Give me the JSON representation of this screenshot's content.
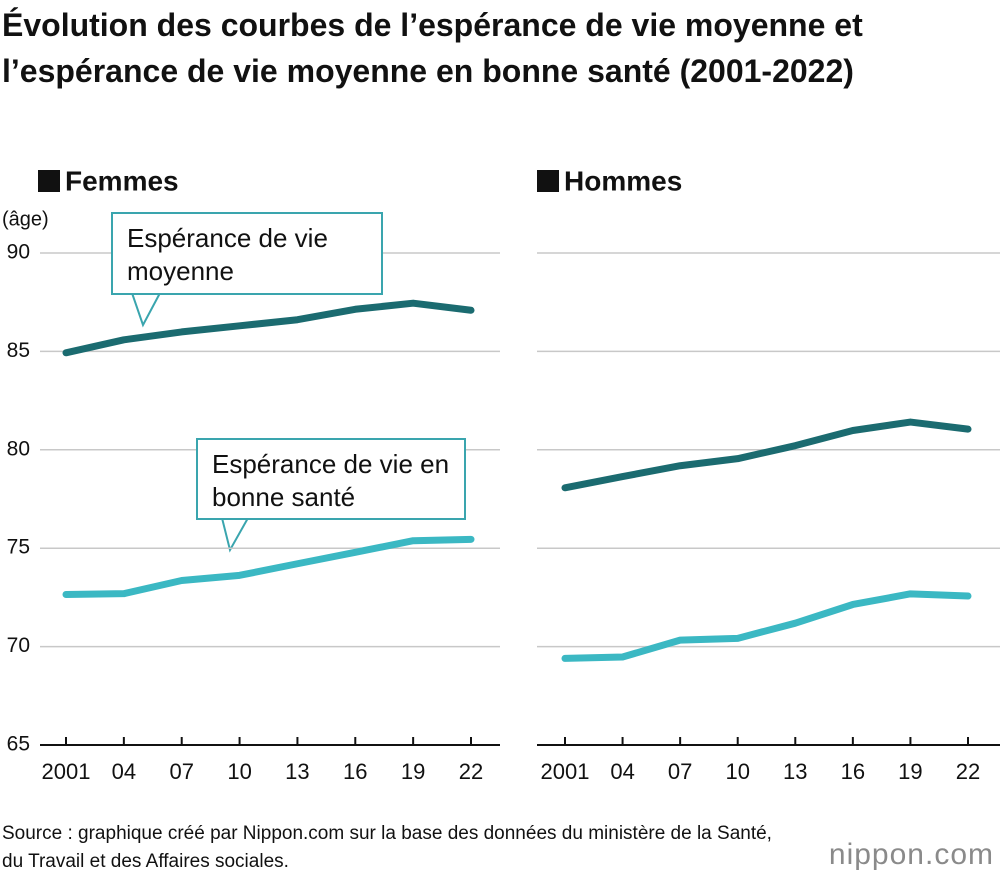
{
  "title": "Évolution des courbes de l’espérance de vie moyenne et l’espérance de vie moyenne en bonne santé (2001-2022)",
  "source": "Source : graphique créé par Nippon.com sur la base des données du ministère de la Santé, du Travail et des Affaires sociales.",
  "logo": "nippon.com",
  "chart_data": [
    {
      "type": "line",
      "title": "Femmes",
      "y_label": "(âge)",
      "categories": [
        "2001",
        "04",
        "07",
        "10",
        "13",
        "16",
        "19",
        "22"
      ],
      "series": [
        {
          "name": "Espérance de vie moyenne",
          "color": "#1b6b70",
          "values": [
            84.93,
            85.59,
            85.99,
            86.3,
            86.61,
            87.14,
            87.45,
            87.09
          ]
        },
        {
          "name": "Espérance de vie en bonne santé",
          "color": "#3bb8c3",
          "values": [
            72.65,
            72.69,
            73.36,
            73.62,
            74.21,
            74.79,
            75.38,
            75.45
          ]
        }
      ],
      "ylim": [
        65,
        90
      ],
      "yticks": [
        65,
        70,
        75,
        80,
        85,
        90
      ],
      "grid": true
    },
    {
      "type": "line",
      "title": "Hommes",
      "categories": [
        "2001",
        "04",
        "07",
        "10",
        "13",
        "16",
        "19",
        "22"
      ],
      "series": [
        {
          "name": "Espérance de vie moyenne",
          "color": "#1b6b70",
          "values": [
            78.07,
            78.64,
            79.19,
            79.55,
            80.21,
            80.98,
            81.41,
            81.05
          ]
        },
        {
          "name": "Espérance de vie en bonne santé",
          "color": "#3bb8c3",
          "values": [
            69.4,
            69.47,
            70.33,
            70.42,
            71.19,
            72.14,
            72.68,
            72.57
          ]
        }
      ],
      "ylim": [
        65,
        90
      ],
      "yticks": [
        65,
        70,
        75,
        80,
        85,
        90
      ],
      "grid": true
    }
  ]
}
